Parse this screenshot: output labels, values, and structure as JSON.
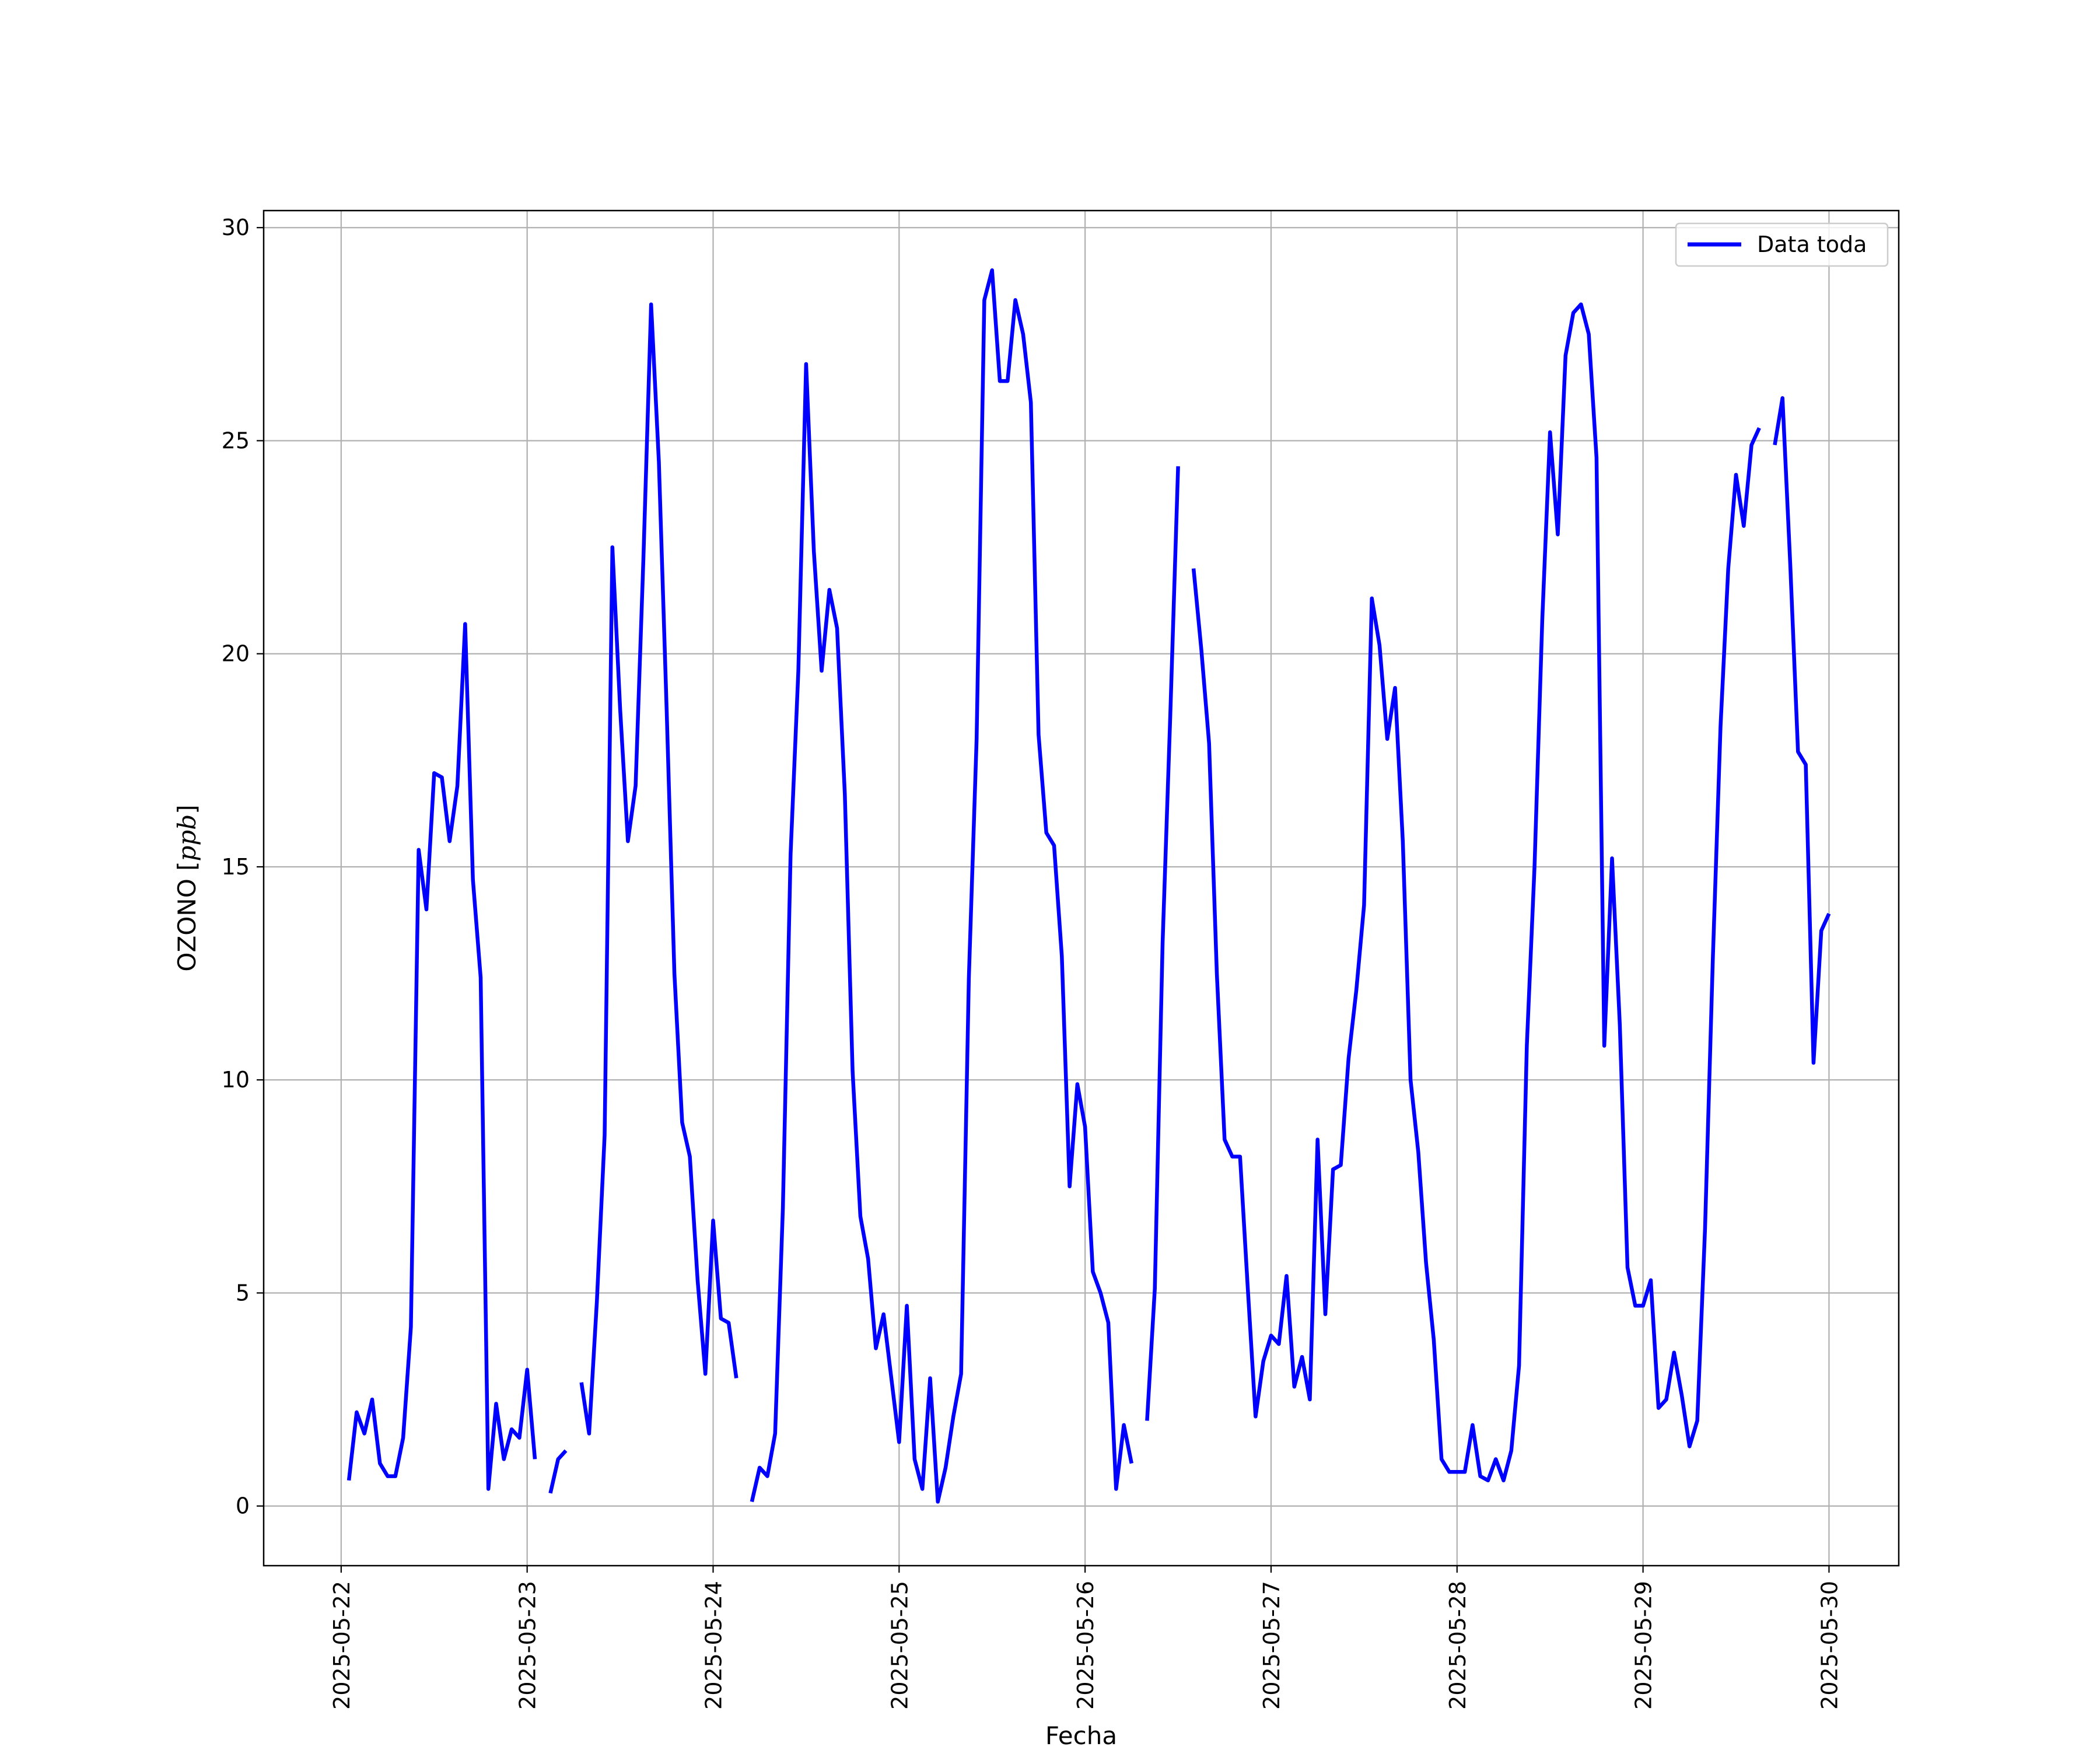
{
  "chart_data": {
    "type": "line",
    "title": "",
    "xlabel": "Fecha",
    "ylabel": "OZONO [ppb]",
    "ylabel_main": "OZONO",
    "ylabel_unit": "ppb",
    "xlim": [
      "2025-05-21 14:00",
      "2025-05-30 09:00"
    ],
    "ylim": [
      -1.4,
      30.4
    ],
    "x_ticks": [
      "2025-05-22",
      "2025-05-23",
      "2025-05-24",
      "2025-05-25",
      "2025-05-26",
      "2025-05-27",
      "2025-05-28",
      "2025-05-29",
      "2025-05-30"
    ],
    "y_ticks": [
      0,
      5,
      10,
      15,
      20,
      25,
      30
    ],
    "grid": true,
    "legend_position": "top-right",
    "series": [
      {
        "name": "Data toda",
        "color": "#0000ff",
        "segments": [
          [
            [
              "2025-05-22 01:00",
              0.6
            ],
            [
              "2025-05-22 02:00",
              2.2
            ],
            [
              "2025-05-22 03:00",
              1.7
            ],
            [
              "2025-05-22 04:00",
              2.5
            ],
            [
              "2025-05-22 05:00",
              1.0
            ],
            [
              "2025-05-22 06:00",
              0.7
            ],
            [
              "2025-05-22 07:00",
              0.7
            ],
            [
              "2025-05-22 08:00",
              1.6
            ],
            [
              "2025-05-22 09:00",
              4.2
            ],
            [
              "2025-05-22 10:00",
              15.4
            ],
            [
              "2025-05-22 11:00",
              14.0
            ],
            [
              "2025-05-22 12:00",
              17.2
            ],
            [
              "2025-05-22 13:00",
              17.1
            ],
            [
              "2025-05-22 14:00",
              15.6
            ],
            [
              "2025-05-22 15:00",
              16.9
            ],
            [
              "2025-05-22 16:00",
              20.7
            ],
            [
              "2025-05-22 17:00",
              14.7
            ],
            [
              "2025-05-22 18:00",
              12.4
            ],
            [
              "2025-05-22 19:00",
              0.4
            ],
            [
              "2025-05-22 20:00",
              2.4
            ],
            [
              "2025-05-22 21:00",
              1.1
            ],
            [
              "2025-05-22 22:00",
              1.8
            ],
            [
              "2025-05-22 23:00",
              1.6
            ],
            [
              "2025-05-23 00:00",
              3.2
            ],
            [
              "2025-05-23 01:00",
              1.1
            ]
          ],
          [
            [
              "2025-05-23 03:00",
              0.3
            ],
            [
              "2025-05-23 04:00",
              1.1
            ],
            [
              "2025-05-23 05:00",
              1.3
            ]
          ],
          [
            [
              "2025-05-23 07:00",
              2.9
            ],
            [
              "2025-05-23 08:00",
              1.7
            ],
            [
              "2025-05-23 09:00",
              4.8
            ],
            [
              "2025-05-23 10:00",
              8.7
            ],
            [
              "2025-05-23 11:00",
              22.5
            ],
            [
              "2025-05-23 12:00",
              18.7
            ],
            [
              "2025-05-23 13:00",
              15.6
            ],
            [
              "2025-05-23 14:00",
              16.9
            ],
            [
              "2025-05-23 15:00",
              22.2
            ],
            [
              "2025-05-23 16:00",
              28.2
            ],
            [
              "2025-05-23 17:00",
              24.5
            ],
            [
              "2025-05-23 18:00",
              18.7
            ],
            [
              "2025-05-23 19:00",
              12.5
            ],
            [
              "2025-05-23 20:00",
              9.0
            ],
            [
              "2025-05-23 21:00",
              8.2
            ],
            [
              "2025-05-23 22:00",
              5.3
            ],
            [
              "2025-05-23 23:00",
              3.1
            ],
            [
              "2025-05-24 00:00",
              6.7
            ],
            [
              "2025-05-24 01:00",
              4.4
            ],
            [
              "2025-05-24 02:00",
              4.3
            ],
            [
              "2025-05-24 03:00",
              3.0
            ]
          ],
          [
            [
              "2025-05-24 05:00",
              0.1
            ],
            [
              "2025-05-24 06:00",
              0.9
            ],
            [
              "2025-05-24 07:00",
              0.7
            ],
            [
              "2025-05-24 08:00",
              1.7
            ],
            [
              "2025-05-24 09:00",
              7.0
            ],
            [
              "2025-05-24 10:00",
              15.3
            ],
            [
              "2025-05-24 11:00",
              19.6
            ],
            [
              "2025-05-24 12:00",
              26.8
            ],
            [
              "2025-05-24 13:00",
              22.4
            ],
            [
              "2025-05-24 14:00",
              19.6
            ],
            [
              "2025-05-24 15:00",
              21.5
            ],
            [
              "2025-05-24 16:00",
              20.6
            ],
            [
              "2025-05-24 17:00",
              16.7
            ],
            [
              "2025-05-24 18:00",
              10.2
            ],
            [
              "2025-05-24 19:00",
              6.8
            ],
            [
              "2025-05-24 20:00",
              5.8
            ],
            [
              "2025-05-24 21:00",
              3.7
            ],
            [
              "2025-05-24 22:00",
              4.5
            ],
            [
              "2025-05-24 23:00",
              3.0
            ],
            [
              "2025-05-25 00:00",
              1.5
            ],
            [
              "2025-05-25 01:00",
              4.7
            ],
            [
              "2025-05-25 02:00",
              1.1
            ],
            [
              "2025-05-25 03:00",
              0.4
            ],
            [
              "2025-05-25 04:00",
              3.0
            ],
            [
              "2025-05-25 05:00",
              0.1
            ],
            [
              "2025-05-25 06:00",
              0.9
            ],
            [
              "2025-05-25 07:00",
              2.1
            ],
            [
              "2025-05-25 08:00",
              3.1
            ],
            [
              "2025-05-25 09:00",
              12.4
            ],
            [
              "2025-05-25 10:00",
              18.0
            ],
            [
              "2025-05-25 11:00",
              28.3
            ],
            [
              "2025-05-25 12:00",
              29.0
            ],
            [
              "2025-05-25 13:00",
              26.4
            ],
            [
              "2025-05-25 14:00",
              26.4
            ],
            [
              "2025-05-25 15:00",
              28.3
            ],
            [
              "2025-05-25 16:00",
              27.5
            ],
            [
              "2025-05-25 17:00",
              25.9
            ],
            [
              "2025-05-25 18:00",
              18.1
            ],
            [
              "2025-05-25 19:00",
              15.8
            ],
            [
              "2025-05-25 20:00",
              15.5
            ],
            [
              "2025-05-25 21:00",
              12.9
            ],
            [
              "2025-05-25 22:00",
              7.5
            ],
            [
              "2025-05-25 23:00",
              9.9
            ],
            [
              "2025-05-26 00:00",
              8.9
            ],
            [
              "2025-05-26 01:00",
              5.5
            ],
            [
              "2025-05-26 02:00",
              5.0
            ],
            [
              "2025-05-26 03:00",
              4.3
            ],
            [
              "2025-05-26 04:00",
              0.4
            ],
            [
              "2025-05-26 05:00",
              1.9
            ],
            [
              "2025-05-26 06:00",
              1.0
            ]
          ],
          [
            [
              "2025-05-26 08:00",
              2.0
            ],
            [
              "2025-05-26 09:00",
              5.1
            ],
            [
              "2025-05-26 10:00",
              13.2
            ],
            [
              "2025-05-26 11:00",
              18.6
            ],
            [
              "2025-05-26 12:00",
              24.4
            ]
          ],
          [
            [
              "2025-05-26 14:00",
              22.0
            ],
            [
              "2025-05-26 15:00",
              20.1
            ],
            [
              "2025-05-26 16:00",
              17.9
            ],
            [
              "2025-05-26 17:00",
              12.5
            ],
            [
              "2025-05-26 18:00",
              8.6
            ],
            [
              "2025-05-26 19:00",
              8.2
            ],
            [
              "2025-05-26 20:00",
              8.2
            ],
            [
              "2025-05-26 21:00",
              5.1
            ],
            [
              "2025-05-26 22:00",
              2.1
            ],
            [
              "2025-05-26 23:00",
              3.4
            ],
            [
              "2025-05-27 00:00",
              4.0
            ],
            [
              "2025-05-27 01:00",
              3.8
            ],
            [
              "2025-05-27 02:00",
              5.4
            ],
            [
              "2025-05-27 03:00",
              2.8
            ],
            [
              "2025-05-27 04:00",
              3.5
            ],
            [
              "2025-05-27 05:00",
              2.5
            ],
            [
              "2025-05-27 06:00",
              8.6
            ],
            [
              "2025-05-27 07:00",
              4.5
            ],
            [
              "2025-05-27 08:00",
              7.9
            ],
            [
              "2025-05-27 09:00",
              8.0
            ],
            [
              "2025-05-27 10:00",
              10.5
            ],
            [
              "2025-05-27 11:00",
              12.1
            ],
            [
              "2025-05-27 12:00",
              14.1
            ],
            [
              "2025-05-27 13:00",
              21.3
            ],
            [
              "2025-05-27 14:00",
              20.2
            ],
            [
              "2025-05-27 15:00",
              18.0
            ],
            [
              "2025-05-27 16:00",
              19.2
            ],
            [
              "2025-05-27 17:00",
              15.6
            ],
            [
              "2025-05-27 18:00",
              10.0
            ],
            [
              "2025-05-27 19:00",
              8.3
            ],
            [
              "2025-05-27 20:00",
              5.7
            ],
            [
              "2025-05-27 21:00",
              3.9
            ],
            [
              "2025-05-27 22:00",
              1.1
            ],
            [
              "2025-05-27 23:00",
              0.8
            ],
            [
              "2025-05-28 00:00",
              0.8
            ],
            [
              "2025-05-28 01:00",
              0.8
            ],
            [
              "2025-05-28 02:00",
              1.9
            ],
            [
              "2025-05-28 03:00",
              0.7
            ],
            [
              "2025-05-28 04:00",
              0.6
            ],
            [
              "2025-05-28 05:00",
              1.1
            ],
            [
              "2025-05-28 06:00",
              0.6
            ],
            [
              "2025-05-28 07:00",
              1.3
            ],
            [
              "2025-05-28 08:00",
              3.3
            ],
            [
              "2025-05-28 09:00",
              10.8
            ],
            [
              "2025-05-28 10:00",
              15.0
            ],
            [
              "2025-05-28 11:00",
              20.8
            ],
            [
              "2025-05-28 12:00",
              25.2
            ],
            [
              "2025-05-28 13:00",
              22.8
            ],
            [
              "2025-05-28 14:00",
              27.0
            ],
            [
              "2025-05-28 15:00",
              28.0
            ],
            [
              "2025-05-28 16:00",
              28.2
            ],
            [
              "2025-05-28 17:00",
              27.5
            ],
            [
              "2025-05-28 18:00",
              24.6
            ],
            [
              "2025-05-28 19:00",
              10.8
            ],
            [
              "2025-05-28 20:00",
              15.2
            ],
            [
              "2025-05-28 21:00",
              11.3
            ],
            [
              "2025-05-28 22:00",
              5.6
            ],
            [
              "2025-05-28 23:00",
              4.7
            ],
            [
              "2025-05-29 00:00",
              4.7
            ],
            [
              "2025-05-29 01:00",
              5.3
            ],
            [
              "2025-05-29 02:00",
              2.3
            ],
            [
              "2025-05-29 03:00",
              2.5
            ],
            [
              "2025-05-29 04:00",
              3.6
            ],
            [
              "2025-05-29 05:00",
              2.6
            ],
            [
              "2025-05-29 06:00",
              1.4
            ],
            [
              "2025-05-29 07:00",
              2.0
            ],
            [
              "2025-05-29 08:00",
              6.5
            ],
            [
              "2025-05-29 09:00",
              12.8
            ],
            [
              "2025-05-29 10:00",
              18.3
            ],
            [
              "2025-05-29 11:00",
              22.0
            ],
            [
              "2025-05-29 12:00",
              24.2
            ],
            [
              "2025-05-29 13:00",
              23.0
            ],
            [
              "2025-05-29 14:00",
              24.9
            ],
            [
              "2025-05-29 15:00",
              25.3
            ]
          ],
          [
            [
              "2025-05-29 17:00",
              24.9
            ],
            [
              "2025-05-29 18:00",
              26.0
            ],
            [
              "2025-05-29 19:00",
              22.1
            ],
            [
              "2025-05-29 20:00",
              17.7
            ],
            [
              "2025-05-29 21:00",
              17.4
            ],
            [
              "2025-05-29 22:00",
              10.4
            ],
            [
              "2025-05-29 23:00",
              13.5
            ],
            [
              "2025-05-30 00:00",
              13.9
            ]
          ]
        ]
      }
    ]
  }
}
